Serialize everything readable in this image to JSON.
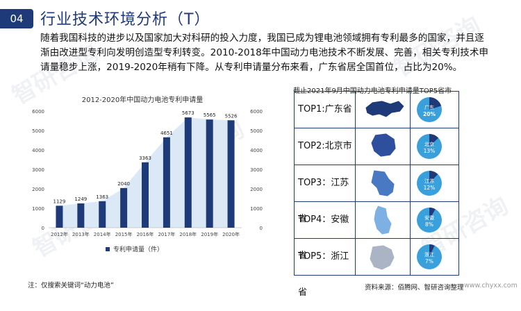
{
  "header": {
    "badge": "04",
    "title": "行业技术环境分析（T）"
  },
  "body_text": "随着我国科技的进步以及国家加大对科研的投入力度，我国已成为锂电池领域拥有专利最多的国家，并且逐渐由改进型专利向发明创造型专利转变。2010-2018年中国动力电池技术不断发展、完善，相关专利技术申请量稳步上涨，2019-2020年稍有下降。从专利申请量分布来看，广东省居全国首位，占比为20%。",
  "chart_data": {
    "type": "bar",
    "title": "2012-2020年中国动力电池专利申请量",
    "categories": [
      "2012年",
      "2013年",
      "2014年",
      "2015年",
      "2016年",
      "2017年",
      "2018年",
      "2019年",
      "2020年"
    ],
    "series": [
      {
        "name": "专利申请量（件）",
        "values": [
          1129,
          1249,
          1363,
          2040,
          3363,
          4651,
          5673,
          5565,
          5526
        ]
      }
    ],
    "ylim": [
      0,
      6000
    ],
    "yticks": [
      0,
      1000,
      2000,
      3000,
      4000,
      5000,
      6000
    ],
    "dual_axis": true,
    "grid": false,
    "legend": "bottom",
    "bar_color": "#1f3a78",
    "area_color": "#dbe9f6"
  },
  "ranking": {
    "title": "截止2021年9月中国动力电池专利申请量TOP5省市",
    "rows": [
      {
        "label": "TOP1:广东省",
        "name": "广东",
        "pct_label": "20%",
        "share": 0.2
      },
      {
        "label": "TOP2:北京市",
        "name": "北京",
        "pct_label": "13%",
        "share": 0.13
      },
      {
        "label": "TOP3：江苏省",
        "name": "江苏",
        "pct_label": "12%",
        "share": 0.12
      },
      {
        "label": "TOP4：安徽省",
        "name": "安徽",
        "pct_label": "8%",
        "share": 0.08
      },
      {
        "label": "TOP5：浙江省",
        "name": "浙江",
        "pct_label": "7%",
        "share": 0.07
      }
    ],
    "map_colors": [
      "#1f3a78",
      "#2d4f9e",
      "#4a79c4",
      "#7fb0e4",
      "#aab4c4"
    ],
    "pie_base": "#3aa0dc",
    "pie_slice": "#1f3a78"
  },
  "footer": {
    "note": "注：仅搜索关键词“动力电池”",
    "source": "资料来源：佰腾网、智研咨询整理",
    "site": "www.chyxx.com"
  },
  "watermark": "智研咨询"
}
